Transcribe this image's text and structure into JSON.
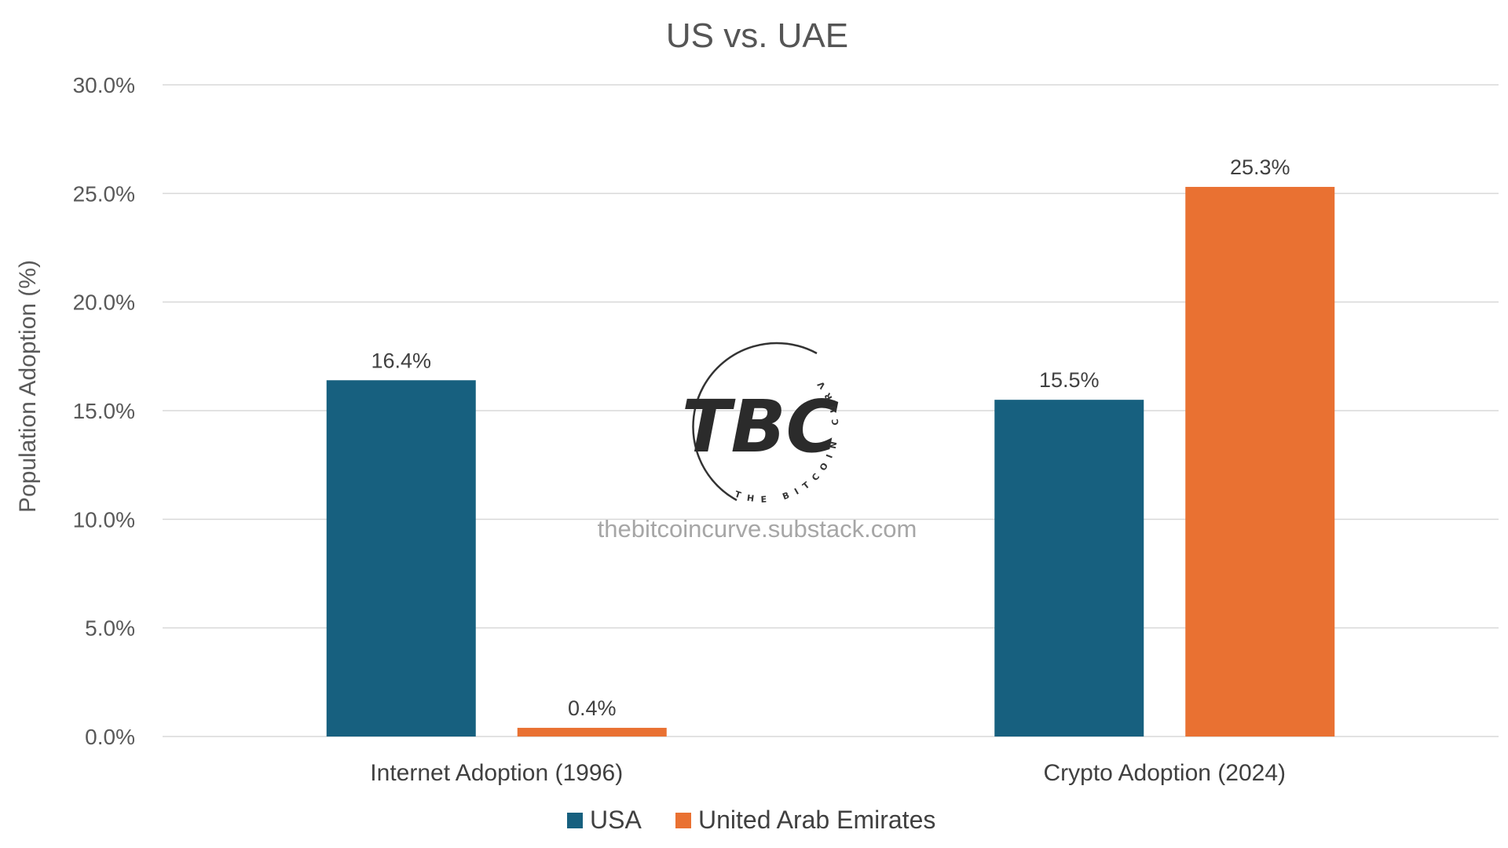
{
  "chart_data": {
    "type": "bar",
    "title": "US vs. UAE",
    "xlabel": "",
    "ylabel": "Population Adoption (%)",
    "categories": [
      "Internet Adoption (1996)",
      "Crypto Adoption (2024)"
    ],
    "series": [
      {
        "name": "USA",
        "color": "#17607f",
        "values": [
          16.4,
          15.5
        ],
        "labels": [
          "16.4%",
          "15.5%"
        ]
      },
      {
        "name": "United Arab Emirates",
        "color": "#e97132",
        "values": [
          0.4,
          25.3
        ],
        "labels": [
          "0.4%",
          "25.3%"
        ]
      }
    ],
    "ylim": [
      0,
      30
    ],
    "yticks": [
      0,
      5,
      10,
      15,
      20,
      25,
      30
    ],
    "ytick_labels": [
      "0.0%",
      "5.0%",
      "10.0%",
      "15.0%",
      "20.0%",
      "25.0%",
      "30.0%"
    ],
    "grid": true,
    "legend_position": "bottom"
  },
  "watermark": {
    "logo_text": "TBC",
    "logo_ring_text": "THE BITCOIN CURVE",
    "url": "thebitcoincurve.substack.com"
  }
}
